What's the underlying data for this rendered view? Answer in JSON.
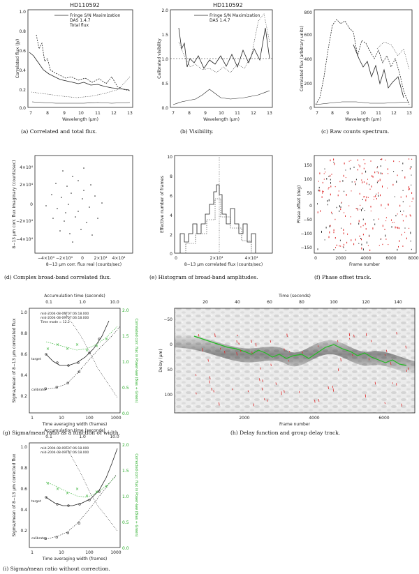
{
  "panels": {
    "a": {
      "title": "HD110592",
      "legend": [
        "Fringe S/N Maximization",
        "DAS 1.4.7",
        "Total flux"
      ],
      "ylabel": "Correlated flux (Jy)",
      "xlabel": "Wavelength (µm)",
      "yticks": [
        "0.0",
        "0.2",
        "0.4",
        "0.6",
        "0.8",
        "1.0"
      ],
      "xticks": [
        "7",
        "8",
        "9",
        "10",
        "11",
        "12",
        "13"
      ],
      "caption": "(a) Correlated and total flux."
    },
    "b": {
      "title": "HD110592",
      "legend": [
        "Fringe S/N Maximization",
        "DAS 1.4.7"
      ],
      "ylabel": "Calibrated visibility",
      "xlabel": "Wavelength (µm)",
      "yticks": [
        "0.0",
        "0.5",
        "1.0",
        "1.5",
        "2.0"
      ],
      "xticks": [
        "7",
        "8",
        "9",
        "10",
        "11",
        "12",
        "13"
      ],
      "caption": "(b) Visibility."
    },
    "c": {
      "ylabel": "Correlated flux (arbitrary units)",
      "xlabel": "Wavelength (µm)",
      "yticks": [
        "0",
        "200",
        "400",
        "600",
        "800"
      ],
      "xticks": [
        "7",
        "8",
        "9",
        "10",
        "11",
        "12",
        "13"
      ],
      "caption": "(c) Raw counts spectrum."
    },
    "d": {
      "ylabel": "8−13 µm corr. flux imaginary (counts/sec)",
      "xlabel": "8−13 µm corr. flux real (counts/sec)",
      "yticks": [
        "4×10⁴",
        "2×10⁴",
        "0",
        "−2×10⁴",
        "−4×10⁴"
      ],
      "xticks": [
        "−4×10⁴",
        "−2×10⁴",
        "0",
        "2×10⁴",
        "4×10⁴"
      ],
      "caption": "(d) Complex broad-band correlated flux."
    },
    "e": {
      "ylabel": "Effective number of frames",
      "xlabel": "8−13 µm correlated flux (counts/sec)",
      "yticks": [
        "0",
        "2",
        "4",
        "6",
        "8",
        "10"
      ],
      "xticks": [
        "0",
        "2×10⁴",
        "4×10⁴"
      ],
      "caption": "(e) Histogram of broad-band amplitudes."
    },
    "f": {
      "ylabel": "Phase offset (deg)",
      "xlabel": "Frame number",
      "yticks": [
        "150",
        "100",
        "50",
        "0",
        "−50",
        "−100",
        "−150"
      ],
      "xticks": [
        "0",
        "2000",
        "4000",
        "6000",
        "8000"
      ],
      "caption": "(f) Phase offset track."
    },
    "g": {
      "toplabel": "Accumulation time (seconds)",
      "topticks": [
        "0.1",
        "1.0",
        "10.0"
      ],
      "notes": [
        "mid-2004-08-09T07:06:18.000",
        "mid-2004-08-09T07:06:18.000",
        "Time mode = 12.2"
      ],
      "series_labels": [
        "target",
        "calibrator"
      ],
      "ylabel": "Sigma/mean of 8−13 µm correlated flux",
      "ylabel_right": "Correlated corr. flux in Power-law (Bias + Green)",
      "xlabel": "Time averaging width (frames)",
      "yticks": [
        "0.2",
        "0.4",
        "0.6",
        "0.8",
        "1.0"
      ],
      "yticks_right": [
        "0.0",
        "0.5",
        "1.0",
        "1.5",
        "2.0"
      ],
      "xticks": [
        "1",
        "10",
        "100",
        "1000"
      ],
      "caption": "(g) Sigma/mean ratio as a function of width."
    },
    "h": {
      "toplabel": "Time (seconds)",
      "topticks": [
        "20",
        "40",
        "60",
        "80",
        "100",
        "120",
        "140"
      ],
      "ylabel": "Delay (µm)",
      "xlabel": "Frame number",
      "yticks": [
        "−50",
        "0",
        "50",
        "100"
      ],
      "xticks": [
        "2000",
        "4000",
        "6000"
      ],
      "caption": "(h) Delay function and group delay track."
    },
    "i": {
      "toplabel": "Accumulation time (seconds)",
      "topticks": [
        "0.1",
        "1.0",
        "10.0"
      ],
      "notes": [
        "mid-2004-08-09T07:06:18.000",
        "mid-2004-08-09T07:06:18.000"
      ],
      "series_labels": [
        "target",
        "calibrator"
      ],
      "ylabel": "Sigma/mean of 8−13 µm corrected flux",
      "ylabel_right": "Corrected corr. flux in Power-law (Bias + Green)",
      "xlabel": "Time averaging width (frames)",
      "yticks": [
        "0.2",
        "0.4",
        "0.6",
        "0.8",
        "1.0"
      ],
      "yticks_right": [
        "0.0",
        "0.5",
        "1.0",
        "1.5",
        "2.0"
      ],
      "xticks": [
        "1",
        "10",
        "100",
        "1000"
      ],
      "caption": "(i) Sigma/mean ratio without correction."
    }
  },
  "colors": {
    "accent_green": "#22aa22",
    "accent_red": "#dd2222",
    "axis": "#222222"
  }
}
